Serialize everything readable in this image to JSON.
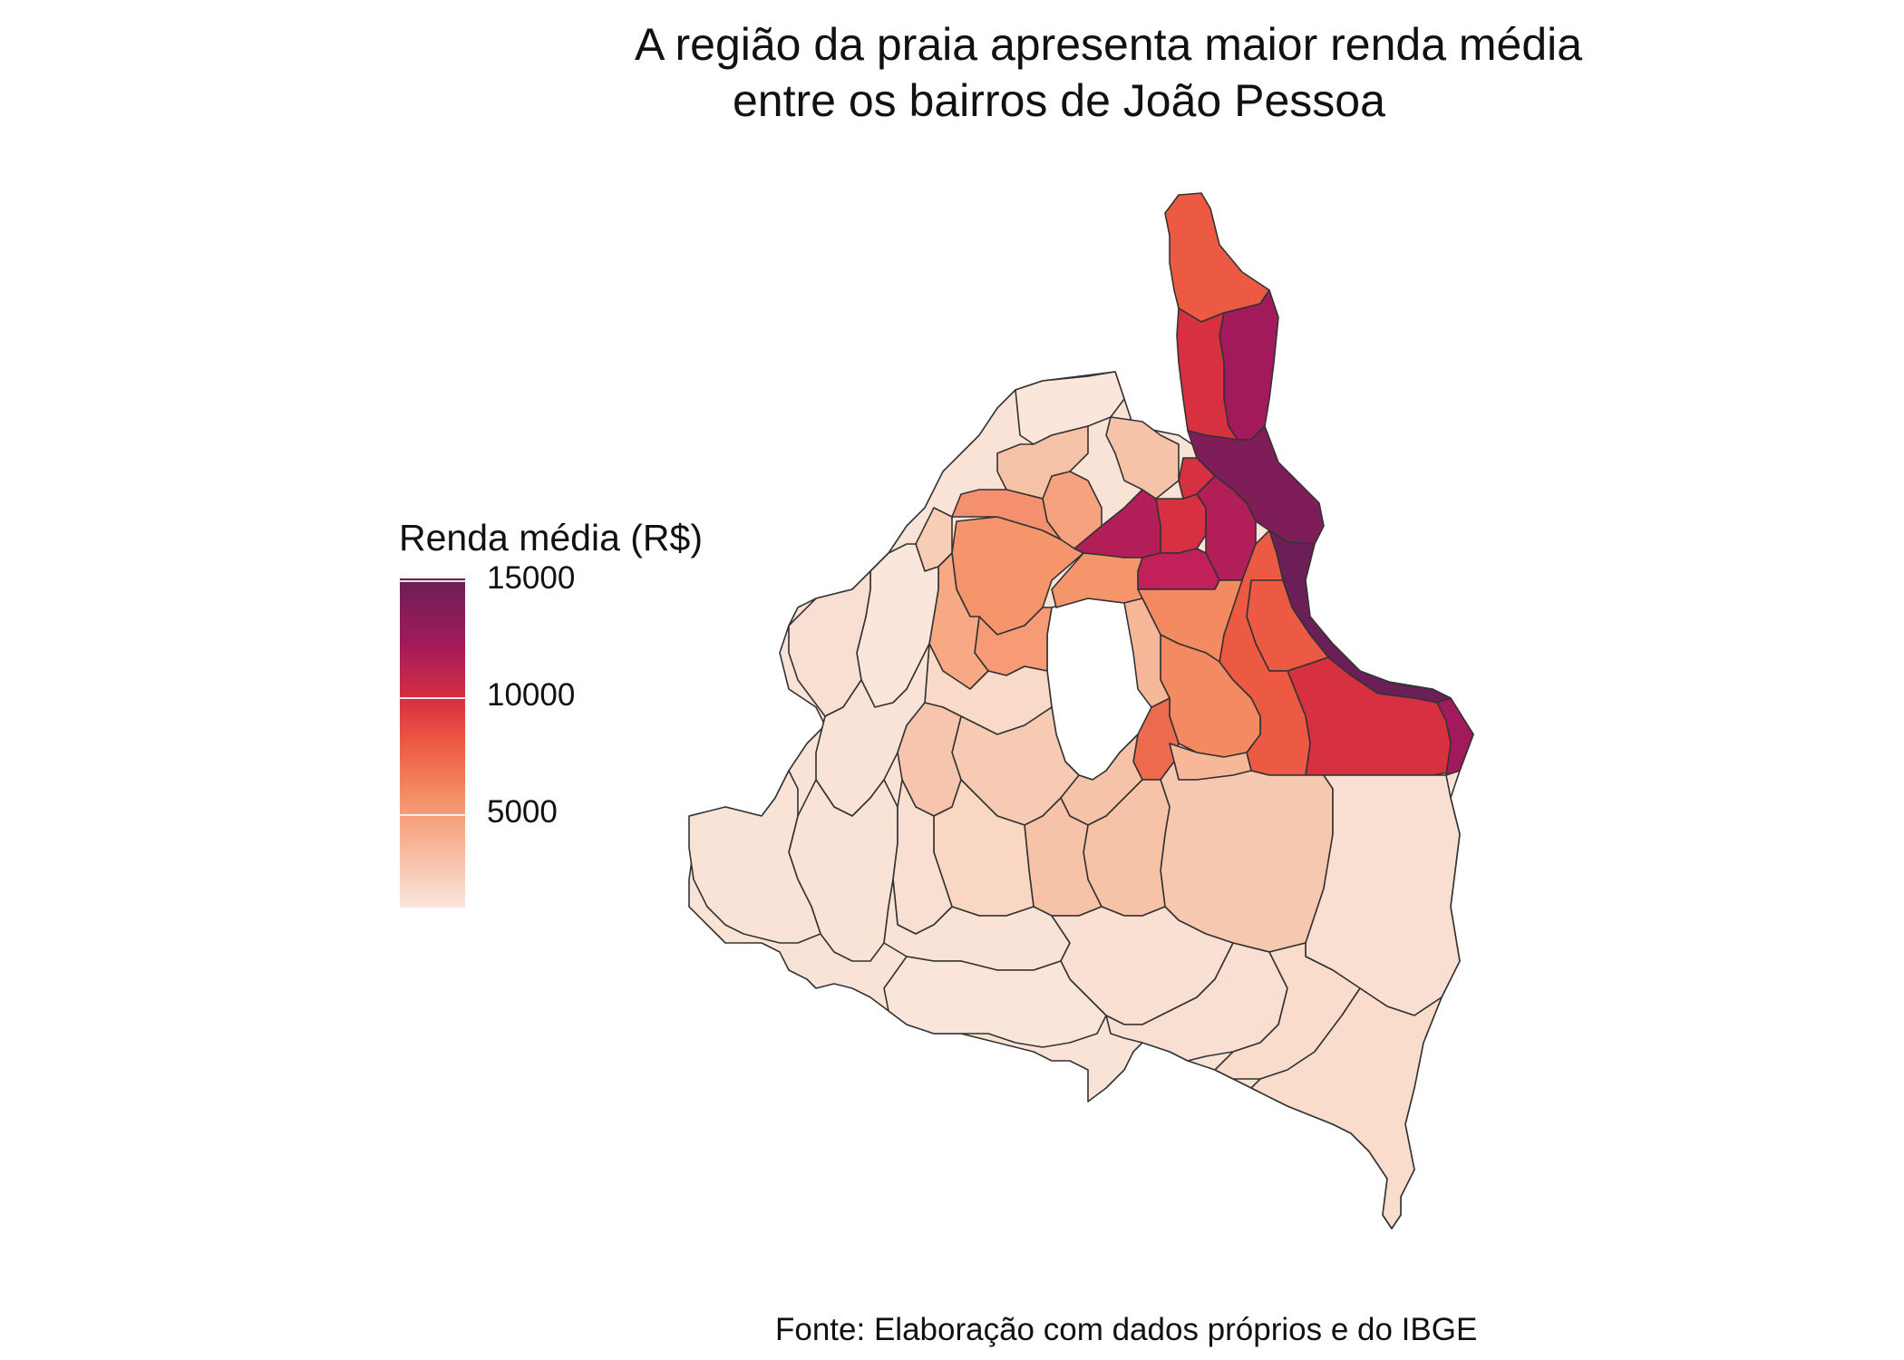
{
  "title": {
    "line1": "A região da praia apresenta maior renda média",
    "line2": "entre os bairros de João Pessoa"
  },
  "legend": {
    "title": "Renda média (R$)",
    "ticks": [
      "15000",
      "10000",
      "5000"
    ],
    "colors": [
      "#fbe6dc",
      "#f7b89a",
      "#f48a62",
      "#ec5a43",
      "#d73040",
      "#a21a5b",
      "#6b1f56"
    ]
  },
  "caption": "Fonte: Elaboração com dados próprios e do IBGE",
  "map": {
    "stroke": "#333333",
    "regions": [
      {
        "name": "north-tip",
        "value": 9000
      },
      {
        "name": "beach-strip-1",
        "value": 12000
      },
      {
        "name": "beach-strip-2",
        "value": 10500
      },
      {
        "name": "coastal-central",
        "value": 14000
      },
      {
        "name": "coastal-south",
        "value": 15000
      },
      {
        "name": "east-cape",
        "value": 10500
      },
      {
        "name": "inner-north-a",
        "value": 12500
      },
      {
        "name": "inner-north-b",
        "value": 11000
      },
      {
        "name": "inner-north-c",
        "value": 12000
      },
      {
        "name": "center-east",
        "value": 9000
      },
      {
        "name": "center-mid",
        "value": 6500
      }
    ]
  }
}
